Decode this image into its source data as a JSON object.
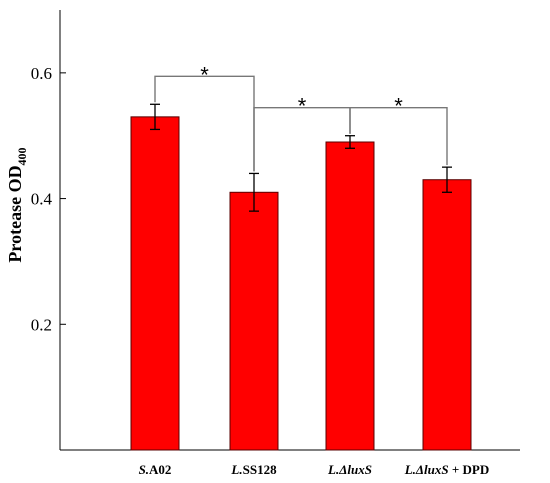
{
  "chart_data": {
    "type": "bar",
    "ylabel": "Protease OD",
    "ylabel_subscript": "400",
    "ylim": [
      0.0,
      0.7
    ],
    "yticks": [
      0.2,
      0.4,
      0.6
    ],
    "ytick_labels": [
      "0.2",
      "0.4",
      "0.6"
    ],
    "grid": false,
    "bar_color": "#ff0000",
    "categories": [
      {
        "italic": "S.",
        "plain": "A02"
      },
      {
        "italic": "L.",
        "plain": "SS128"
      },
      {
        "italic": "L.ΔluxS",
        "plain": ""
      },
      {
        "italic": "L.ΔluxS",
        "plain": " + DPD"
      }
    ],
    "values": [
      0.53,
      0.41,
      0.49,
      0.43
    ],
    "errors": [
      0.02,
      0.03,
      0.01,
      0.02
    ],
    "significance": [
      {
        "from": 0,
        "to": 1,
        "label": "*"
      },
      {
        "from": 1,
        "to": 2,
        "label": "*"
      },
      {
        "from": 2,
        "to": 3,
        "label": "*"
      }
    ]
  }
}
